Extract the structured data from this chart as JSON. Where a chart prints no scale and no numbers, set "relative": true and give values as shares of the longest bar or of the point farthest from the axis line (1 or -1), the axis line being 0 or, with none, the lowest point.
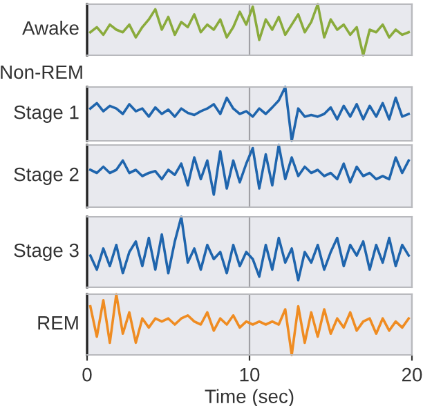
{
  "chart_data": [
    {
      "type": "line",
      "ylabel": "Awake",
      "relative": true,
      "xlim": [
        0,
        20
      ],
      "xticks": [
        0,
        10,
        20
      ],
      "grid": "x",
      "tick_labels": false,
      "x": [
        0.2,
        0.6,
        1.0,
        1.4,
        1.8,
        2.2,
        2.6,
        3.0,
        3.4,
        3.8,
        4.2,
        4.6,
        5.0,
        5.4,
        5.8,
        6.2,
        6.6,
        7.0,
        7.4,
        7.8,
        8.2,
        8.6,
        9.0,
        9.4,
        9.8,
        10.2,
        10.6,
        11.0,
        11.4,
        11.8,
        12.2,
        12.6,
        13.0,
        13.4,
        13.8,
        14.2,
        14.6,
        15.0,
        15.4,
        15.8,
        16.2,
        16.6,
        17.0,
        17.4,
        17.8,
        18.2,
        18.6,
        19.0,
        19.4,
        19.8
      ],
      "series": [
        {
          "color": "#8aab3c",
          "values": [
            0.45,
            0.55,
            0.4,
            0.6,
            0.5,
            0.45,
            0.6,
            0.35,
            0.55,
            0.7,
            0.9,
            0.5,
            0.75,
            0.4,
            0.65,
            0.55,
            0.8,
            0.45,
            0.6,
            0.5,
            0.7,
            0.35,
            0.55,
            0.85,
            0.6,
            0.95,
            0.3,
            0.7,
            0.5,
            0.75,
            0.4,
            0.6,
            0.8,
            0.45,
            0.65,
            1.0,
            0.35,
            0.7,
            0.5,
            0.6,
            0.4,
            0.55,
            0.0,
            0.5,
            0.45,
            0.6,
            0.35,
            0.5,
            0.4,
            0.45
          ]
        }
      ]
    },
    {
      "type": "line",
      "ylabel": "Stage 1",
      "annotations": [
        "Non-REM"
      ],
      "relative": true,
      "xlim": [
        0,
        20
      ],
      "xticks": [
        0,
        10,
        20
      ],
      "grid": "x",
      "tick_labels": false,
      "x": [
        0.2,
        0.6,
        1.0,
        1.4,
        1.8,
        2.2,
        2.6,
        3.0,
        3.4,
        3.8,
        4.2,
        4.6,
        5.0,
        5.4,
        5.8,
        6.2,
        6.6,
        7.0,
        7.4,
        7.8,
        8.2,
        8.6,
        9.0,
        9.4,
        9.8,
        10.2,
        10.6,
        11.0,
        11.4,
        11.8,
        12.2,
        12.6,
        13.0,
        13.4,
        13.8,
        14.2,
        14.6,
        15.0,
        15.4,
        15.8,
        16.2,
        16.6,
        17.0,
        17.4,
        17.8,
        18.2,
        18.6,
        19.0,
        19.4,
        19.8
      ],
      "series": [
        {
          "color": "#1f65ad",
          "values": [
            0.6,
            0.7,
            0.55,
            0.65,
            0.6,
            0.5,
            0.68,
            0.55,
            0.6,
            0.45,
            0.62,
            0.5,
            0.58,
            0.45,
            0.6,
            0.52,
            0.48,
            0.55,
            0.6,
            0.68,
            0.5,
            0.8,
            0.6,
            0.5,
            0.55,
            0.45,
            0.6,
            0.5,
            0.62,
            0.75,
            1.0,
            0.0,
            0.6,
            0.45,
            0.48,
            0.45,
            0.5,
            0.62,
            0.4,
            0.65,
            0.45,
            0.68,
            0.4,
            0.65,
            0.45,
            0.7,
            0.4,
            0.8,
            0.45,
            0.5
          ]
        }
      ]
    },
    {
      "type": "line",
      "ylabel": "Stage 2",
      "relative": true,
      "xlim": [
        0,
        20
      ],
      "xticks": [
        0,
        10,
        20
      ],
      "grid": "x",
      "tick_labels": false,
      "x": [
        0.2,
        0.6,
        1.0,
        1.4,
        1.8,
        2.2,
        2.6,
        3.0,
        3.4,
        3.8,
        4.2,
        4.6,
        5.0,
        5.4,
        5.8,
        6.2,
        6.6,
        7.0,
        7.4,
        7.8,
        8.2,
        8.6,
        9.0,
        9.4,
        9.8,
        10.2,
        10.6,
        11.0,
        11.4,
        11.8,
        12.2,
        12.6,
        13.0,
        13.4,
        13.8,
        14.2,
        14.6,
        15.0,
        15.4,
        15.8,
        16.2,
        16.6,
        17.0,
        17.4,
        17.8,
        18.2,
        18.6,
        19.0,
        19.4,
        19.8
      ],
      "series": [
        {
          "color": "#1f65ad",
          "values": [
            0.6,
            0.55,
            0.65,
            0.55,
            0.6,
            0.75,
            0.55,
            0.6,
            0.5,
            0.55,
            0.58,
            0.45,
            0.6,
            0.52,
            0.7,
            0.35,
            0.8,
            0.45,
            0.75,
            0.2,
            0.9,
            0.3,
            0.75,
            0.4,
            0.7,
            0.95,
            0.3,
            0.85,
            0.35,
            1.0,
            0.45,
            0.8,
            0.5,
            0.65,
            0.55,
            0.6,
            0.5,
            0.55,
            0.45,
            0.7,
            0.4,
            0.65,
            0.5,
            0.55,
            0.45,
            0.5,
            0.45,
            0.8,
            0.55,
            0.75
          ]
        }
      ]
    },
    {
      "type": "line",
      "ylabel": "Stage 3",
      "relative": true,
      "xlim": [
        0,
        20
      ],
      "xticks": [
        0,
        10,
        20
      ],
      "grid": "x",
      "tick_labels": false,
      "x": [
        0.2,
        0.6,
        1.0,
        1.4,
        1.8,
        2.2,
        2.6,
        3.0,
        3.4,
        3.8,
        4.2,
        4.6,
        5.0,
        5.4,
        5.8,
        6.2,
        6.6,
        7.0,
        7.4,
        7.8,
        8.2,
        8.6,
        9.0,
        9.4,
        9.8,
        10.2,
        10.6,
        11.0,
        11.4,
        11.8,
        12.2,
        12.6,
        13.0,
        13.4,
        13.8,
        14.2,
        14.6,
        15.0,
        15.4,
        15.8,
        16.2,
        16.6,
        17.0,
        17.4,
        17.8,
        18.2,
        18.6,
        19.0,
        19.4,
        19.8
      ],
      "series": [
        {
          "color": "#1f65ad",
          "values": [
            0.45,
            0.25,
            0.55,
            0.3,
            0.6,
            0.2,
            0.5,
            0.65,
            0.3,
            0.7,
            0.25,
            0.75,
            0.2,
            0.65,
            1.0,
            0.35,
            0.55,
            0.25,
            0.6,
            0.4,
            0.5,
            0.2,
            0.6,
            0.3,
            0.5,
            0.4,
            0.15,
            0.6,
            0.25,
            0.7,
            0.35,
            0.55,
            0.1,
            0.5,
            0.35,
            0.6,
            0.25,
            0.5,
            0.7,
            0.3,
            0.6,
            0.45,
            0.65,
            0.25,
            0.6,
            0.35,
            0.7,
            0.3,
            0.6,
            0.45
          ]
        }
      ]
    },
    {
      "type": "line",
      "ylabel": "REM",
      "xlabel": "Time (sec)",
      "relative": true,
      "xlim": [
        0,
        20
      ],
      "xticks": [
        0,
        10,
        20
      ],
      "grid": "x",
      "tick_labels": "x",
      "x": [
        0.2,
        0.6,
        1.0,
        1.4,
        1.8,
        2.2,
        2.6,
        3.0,
        3.4,
        3.8,
        4.2,
        4.6,
        5.0,
        5.4,
        5.8,
        6.2,
        6.6,
        7.0,
        7.4,
        7.8,
        8.2,
        8.6,
        9.0,
        9.4,
        9.8,
        10.2,
        10.6,
        11.0,
        11.4,
        11.8,
        12.2,
        12.6,
        13.0,
        13.4,
        13.8,
        14.2,
        14.6,
        15.0,
        15.4,
        15.8,
        16.2,
        16.6,
        17.0,
        17.4,
        17.8,
        18.2,
        18.6,
        19.0,
        19.4,
        19.8
      ],
      "series": [
        {
          "color": "#ef8c22",
          "values": [
            0.8,
            0.3,
            0.9,
            0.2,
            1.0,
            0.35,
            0.7,
            0.2,
            0.6,
            0.45,
            0.6,
            0.55,
            0.6,
            0.5,
            0.6,
            0.65,
            0.55,
            0.5,
            0.7,
            0.4,
            0.6,
            0.5,
            0.65,
            0.45,
            0.55,
            0.5,
            0.55,
            0.5,
            0.55,
            0.5,
            0.75,
            0.0,
            0.8,
            0.2,
            0.7,
            0.3,
            0.75,
            0.35,
            0.6,
            0.45,
            0.7,
            0.4,
            0.55,
            0.6,
            0.35,
            0.6,
            0.4,
            0.55,
            0.45,
            0.6
          ]
        }
      ]
    }
  ]
}
